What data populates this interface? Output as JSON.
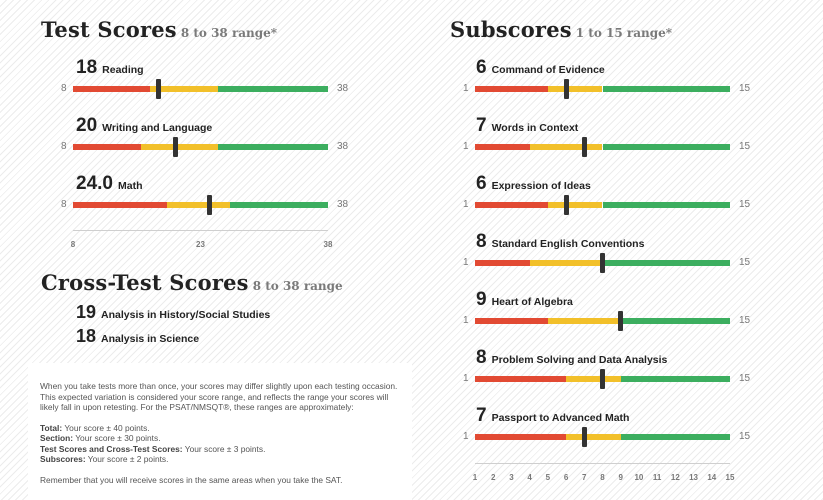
{
  "test_scores": {
    "title": "Test Scores",
    "range_note": "8 to 38 range*",
    "min": 8,
    "max": 38,
    "items": [
      {
        "score": "18",
        "label": "Reading",
        "min_label": "8",
        "max_label": "38",
        "value": 18,
        "red_end": 17,
        "yellow_end": 25
      },
      {
        "score": "20",
        "label": "Writing and Language",
        "min_label": "8",
        "max_label": "38",
        "value": 20,
        "red_end": 16,
        "yellow_end": 25
      },
      {
        "score": "24.0",
        "label": "Math",
        "min_label": "8",
        "max_label": "38",
        "value": 24,
        "red_end": 19,
        "yellow_end": 26.5
      }
    ],
    "axis_ticks": [
      "8",
      "23",
      "38"
    ]
  },
  "cross_test_scores": {
    "title": "Cross-Test Scores",
    "range_note": "8 to 38 range",
    "items": [
      {
        "score": "19",
        "label": "Analysis in History/Social Studies"
      },
      {
        "score": "18",
        "label": "Analysis in Science"
      }
    ]
  },
  "subscores": {
    "title": "Subscores",
    "range_note": "1 to 15 range*",
    "min": 1,
    "max": 15,
    "items": [
      {
        "score": "6",
        "label": "Command of Evidence",
        "min_label": "1",
        "max_label": "15",
        "value": 6,
        "red_end": 5,
        "yellow_end": 8
      },
      {
        "score": "7",
        "label": "Words in Context",
        "min_label": "1",
        "max_label": "15",
        "value": 7,
        "red_end": 4,
        "yellow_end": 8
      },
      {
        "score": "6",
        "label": "Expression of Ideas",
        "min_label": "1",
        "max_label": "15",
        "value": 6,
        "red_end": 5,
        "yellow_end": 8
      },
      {
        "score": "8",
        "label": "Standard English Conventions",
        "min_label": "1",
        "max_label": "15",
        "value": 8,
        "red_end": 4,
        "yellow_end": 8
      },
      {
        "score": "9",
        "label": "Heart of Algebra",
        "min_label": "1",
        "max_label": "15",
        "value": 9,
        "red_end": 5,
        "yellow_end": 9
      },
      {
        "score": "8",
        "label": "Problem Solving and Data Analysis",
        "min_label": "1",
        "max_label": "15",
        "value": 8,
        "red_end": 6,
        "yellow_end": 9
      },
      {
        "score": "7",
        "label": "Passport to Advanced Math",
        "min_label": "1",
        "max_label": "15",
        "value": 7,
        "red_end": 6,
        "yellow_end": 9
      }
    ],
    "axis_ticks": [
      "1",
      "2",
      "3",
      "4",
      "5",
      "6",
      "7",
      "8",
      "9",
      "10",
      "11",
      "12",
      "13",
      "14",
      "15"
    ]
  },
  "colors": {
    "red": "#e24a33",
    "yellow": "#f2c02a",
    "green": "#3cae5f",
    "marker": "#333333"
  },
  "note": {
    "intro": "When you take tests more than once, your scores may differ slightly upon each testing occasion. This expected variation is considered your score range, and reflects the range your scores will likely fall in upon retesting. For the PSAT/NMSQT®, these ranges are approximately:",
    "ranges": [
      {
        "label": "Total:",
        "text": " Your score ± 40 points."
      },
      {
        "label": "Section:",
        "text": " Your score ± 30 points."
      },
      {
        "label": "Test Scores and Cross-Test Scores:",
        "text": " Your score ± 3 points."
      },
      {
        "label": "Subscores:",
        "text": " Your score ± 2 points."
      }
    ],
    "outro": "Remember that you will receive scores in the same areas when you take the SAT."
  }
}
